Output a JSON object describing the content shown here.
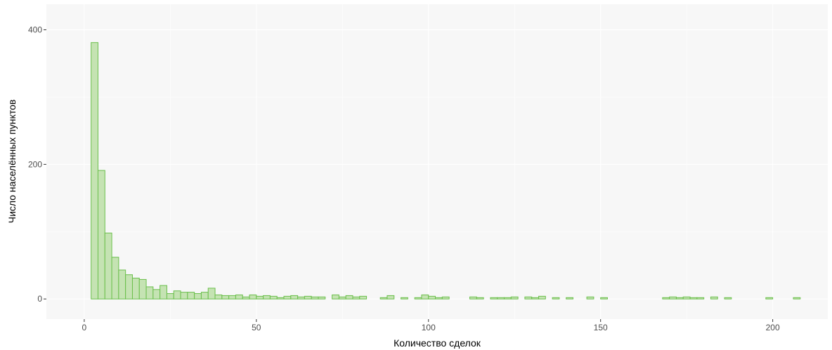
{
  "chart_data": {
    "type": "bar",
    "xlabel": "Количество сделок",
    "ylabel": "Число населённых пунктов",
    "xlim": [
      -11,
      216
    ],
    "ylim": [
      -30,
      438
    ],
    "x_ticks": [
      0,
      50,
      100,
      150,
      200
    ],
    "y_ticks": [
      0,
      200,
      400
    ],
    "x_tick_labels": [
      "0",
      "50",
      "100",
      "150",
      "200"
    ],
    "y_tick_labels": [
      "0",
      "200",
      "400"
    ],
    "grid": true,
    "bin_width": 2,
    "bin_start": 2,
    "colors": {
      "fill": "#c5e3b3",
      "stroke": "#6abf4b",
      "panel": "#f7f7f7",
      "grid": "#ffffff"
    },
    "values": [
      381,
      191,
      98,
      62,
      43,
      36,
      31,
      29,
      18,
      14,
      20,
      8,
      12,
      10,
      10,
      8,
      10,
      16,
      6,
      5,
      5,
      6,
      3,
      6,
      4,
      5,
      4,
      2,
      4,
      5,
      3,
      4,
      3,
      3,
      0,
      6,
      3,
      5,
      3,
      4,
      0,
      0,
      2,
      5,
      0,
      2,
      0,
      2,
      6,
      4,
      2,
      3,
      0,
      0,
      0,
      3,
      2,
      0,
      2,
      2,
      2,
      3,
      0,
      3,
      2,
      4,
      0,
      2,
      0,
      2,
      0,
      0,
      3,
      0,
      2,
      0,
      0,
      0,
      0,
      0,
      0,
      0,
      0,
      2,
      3,
      2,
      3,
      2,
      2,
      0,
      3,
      0,
      2,
      0,
      0,
      0,
      0,
      0,
      2,
      0,
      0,
      0,
      2,
      0
    ]
  }
}
